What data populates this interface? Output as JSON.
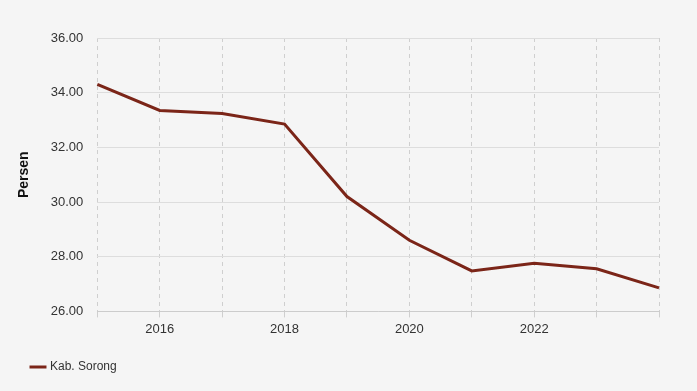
{
  "chart_data": {
    "type": "line",
    "y_label": "Persen",
    "categories": [
      null,
      "2016",
      null,
      "2018",
      null,
      "2020",
      null,
      "2022",
      null,
      null
    ],
    "series": [
      {
        "name": "Kab. Sorong",
        "color": "#7b2518",
        "values": [
          34.3,
          33.35,
          33.24,
          32.85,
          30.2,
          28.6,
          27.48,
          27.76,
          27.56,
          26.86
        ]
      }
    ],
    "ylim": [
      26,
      36
    ],
    "yticks": [
      {
        "value": 26,
        "label": "26.00"
      },
      {
        "value": 28,
        "label": "28.00"
      },
      {
        "value": 30,
        "label": "30.00"
      },
      {
        "value": 32,
        "label": "32.00"
      },
      {
        "value": 34,
        "label": "34.00"
      },
      {
        "value": 36,
        "label": "36.00"
      }
    ],
    "grid": true,
    "legend": "bottom-left"
  }
}
